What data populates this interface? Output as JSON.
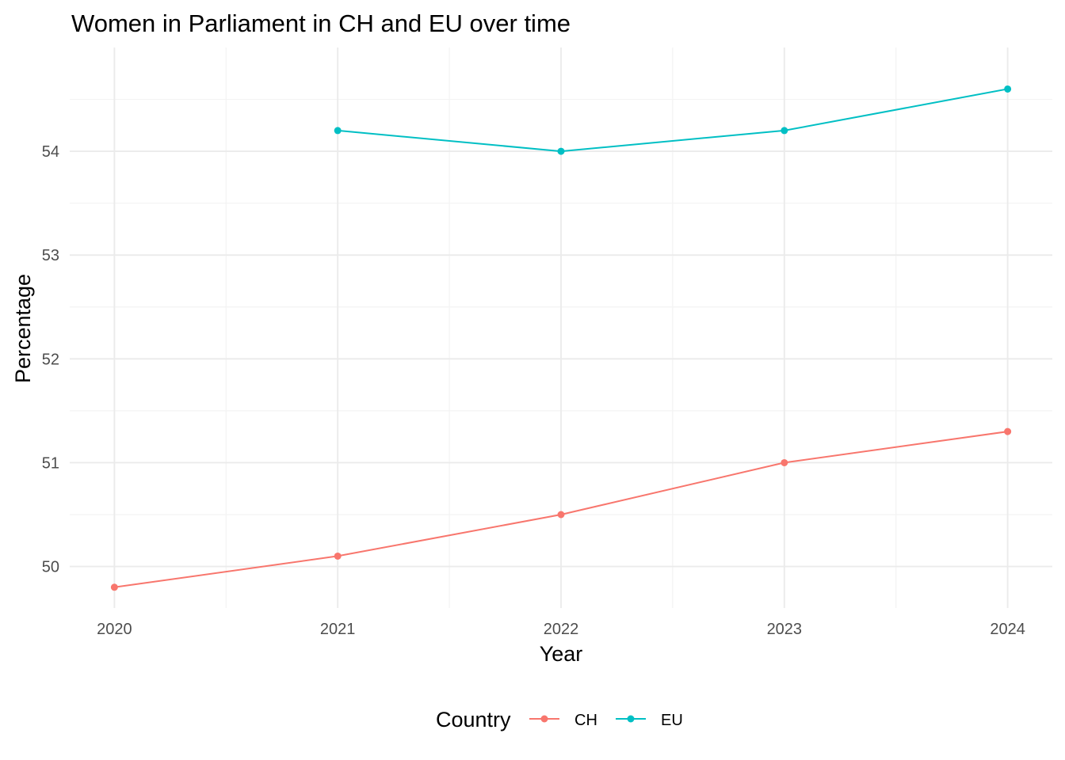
{
  "chart_data": {
    "type": "line",
    "title": "Women in Parliament in CH and EU over time",
    "xlabel": "Year",
    "ylabel": "Percentage",
    "x": [
      2020,
      2021,
      2022,
      2023,
      2024
    ],
    "x_tick_labels": [
      "2020",
      "2021",
      "2022",
      "2023",
      "2024"
    ],
    "y_ticks": [
      50,
      51,
      52,
      53,
      54
    ],
    "y_tick_labels": [
      "50",
      "51",
      "52",
      "53",
      "54"
    ],
    "xlim": [
      2019.8,
      2024.2
    ],
    "ylim": [
      49.6,
      55.0
    ],
    "grid": true,
    "legend": {
      "title": "Country",
      "position": "bottom"
    },
    "series": [
      {
        "name": "CH",
        "color": "#F8766D",
        "points": [
          {
            "x": 2020,
            "y": 49.8
          },
          {
            "x": 2021,
            "y": 50.1
          },
          {
            "x": 2022,
            "y": 50.5
          },
          {
            "x": 2023,
            "y": 51.0
          },
          {
            "x": 2024,
            "y": 51.3
          }
        ]
      },
      {
        "name": "EU",
        "color": "#00BFC4",
        "points": [
          {
            "x": 2021,
            "y": 54.2
          },
          {
            "x": 2022,
            "y": 54.0
          },
          {
            "x": 2023,
            "y": 54.2
          },
          {
            "x": 2024,
            "y": 54.6
          }
        ]
      }
    ]
  }
}
